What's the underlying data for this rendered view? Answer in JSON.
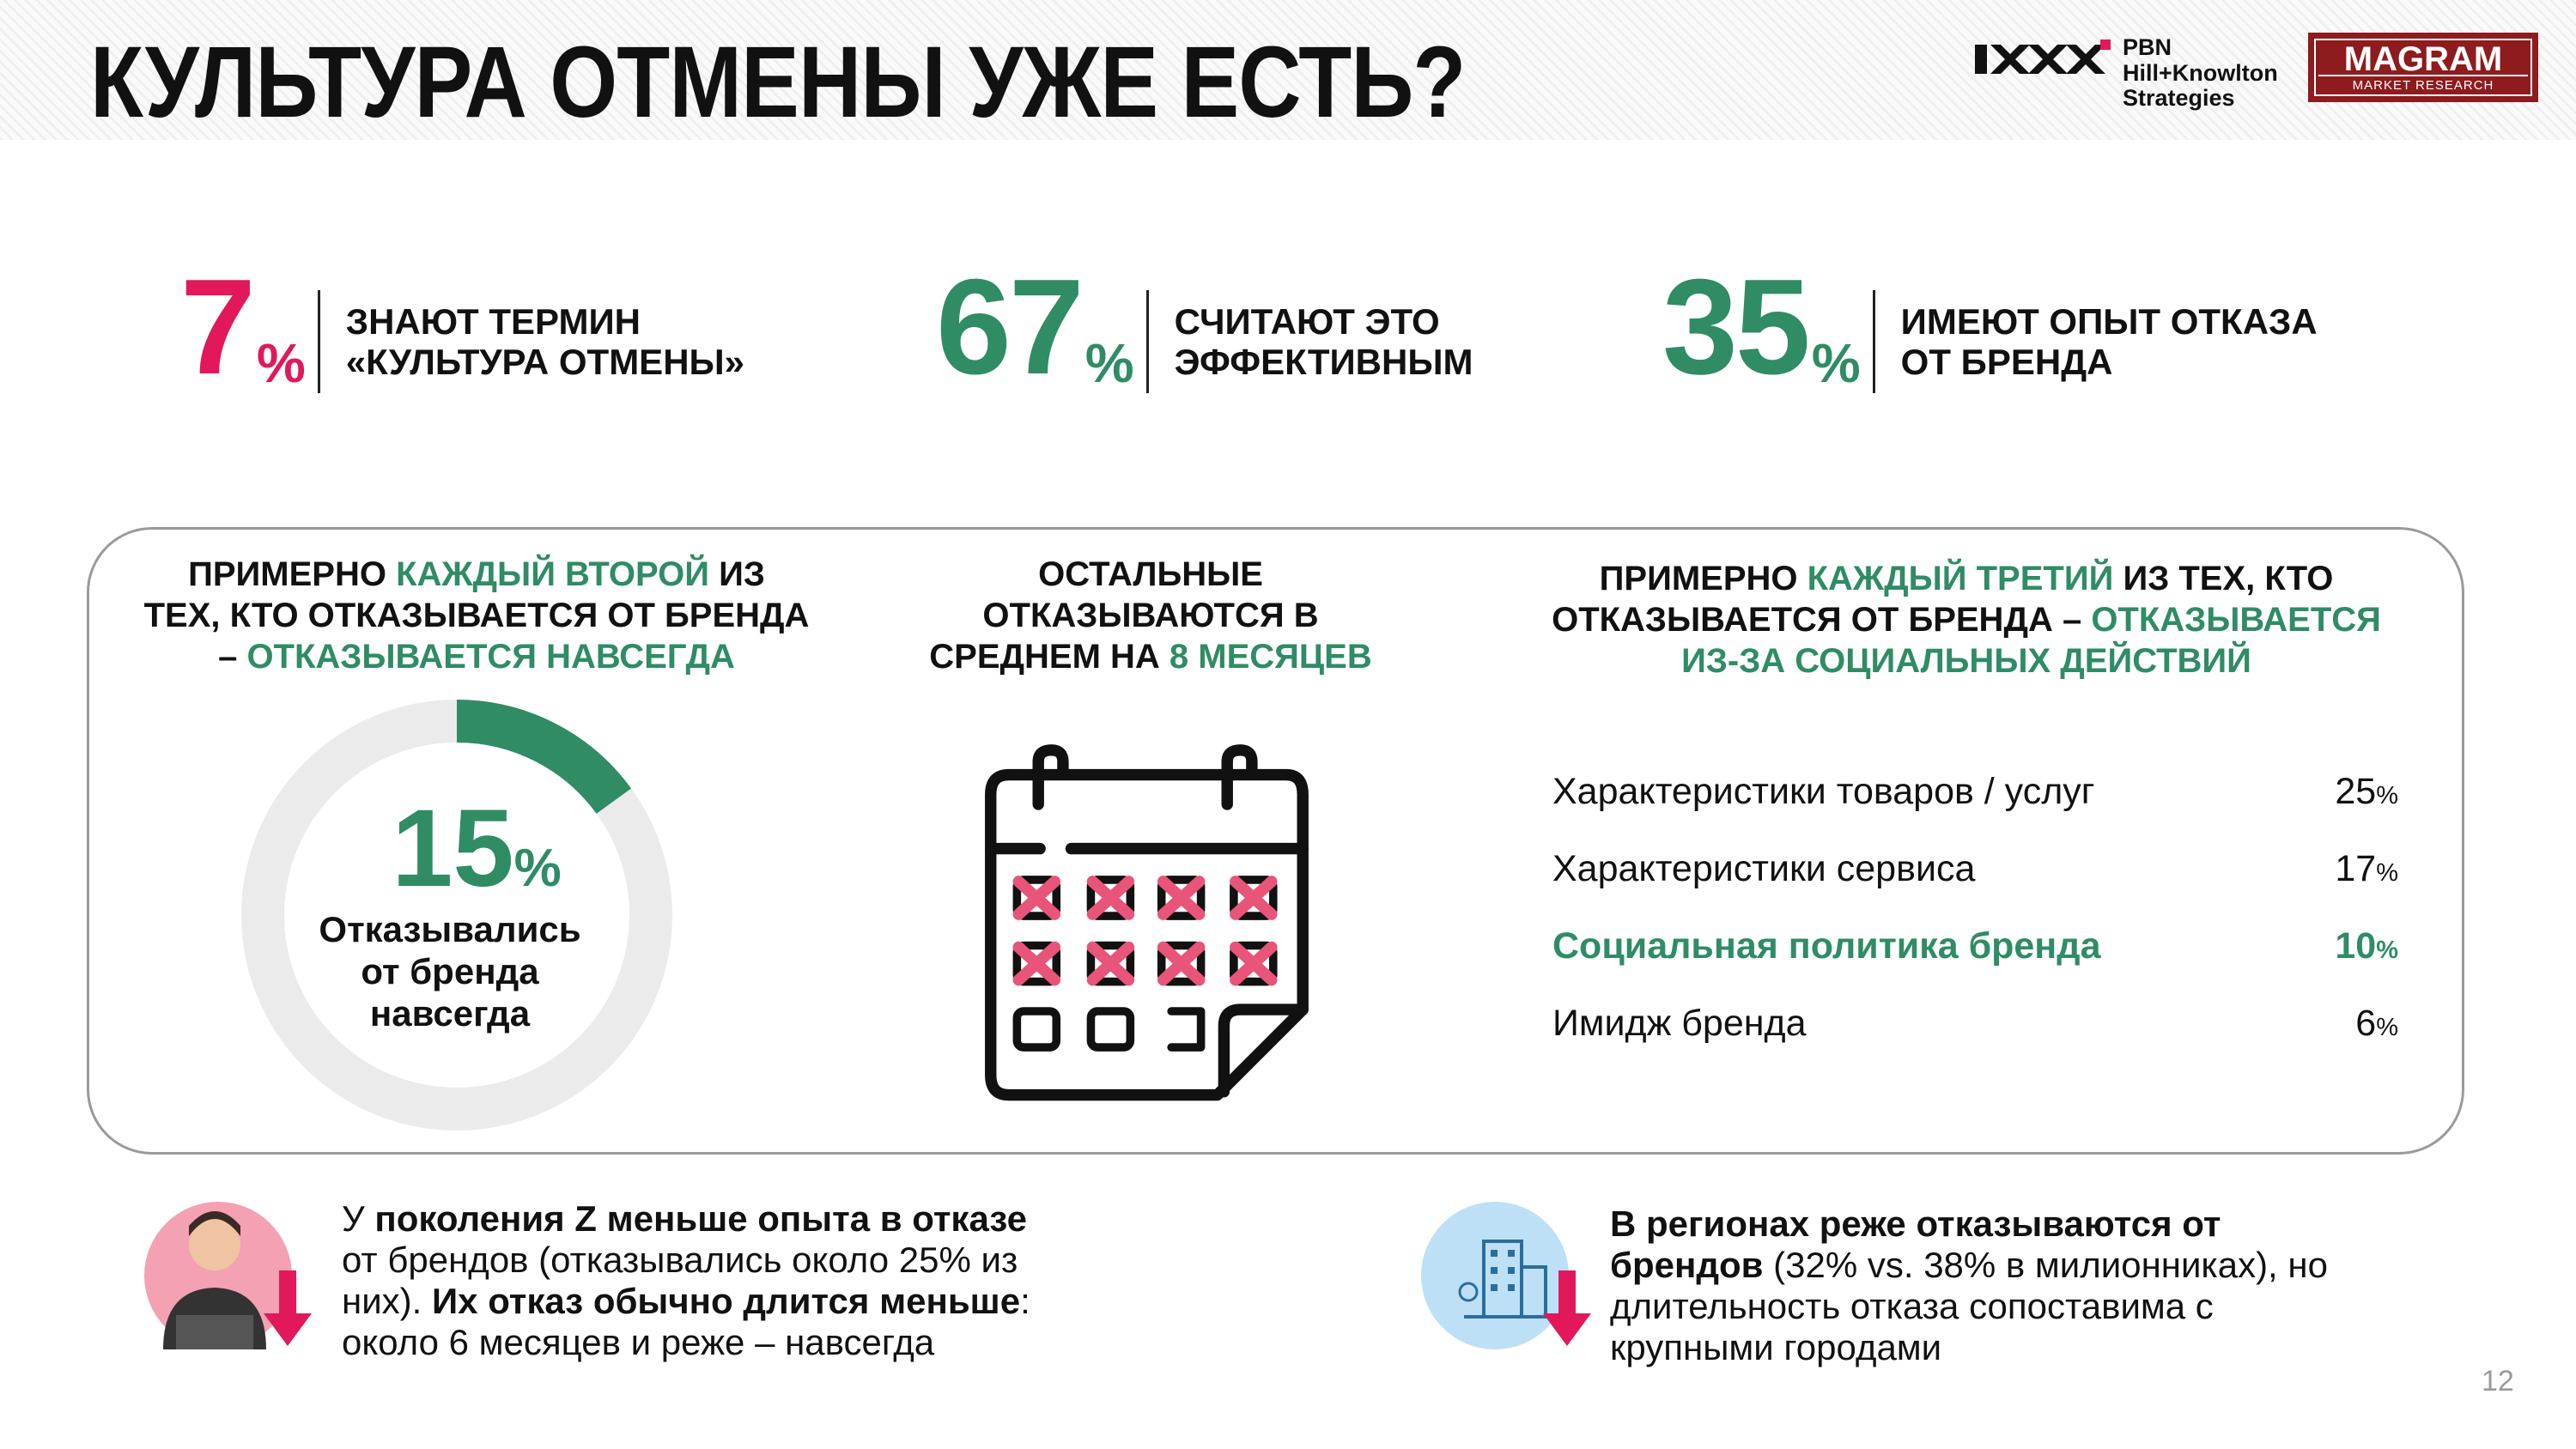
{
  "header": {
    "title": "КУЛЬТУРА ОТМЕНЫ УЖЕ ЕСТЬ?",
    "logo_pbn": [
      "PBN",
      "Hill+Knowlton",
      "Strategies"
    ],
    "logo_magram": {
      "name": "MAGRAM",
      "tagline": "MARKET RESEARCH"
    }
  },
  "stats": [
    {
      "value": "7",
      "unit": "%",
      "color": "#e2185a",
      "lines": [
        "ЗНАЮТ ТЕРМИН",
        "«КУЛЬТУРА ОТМЕНЫ»"
      ]
    },
    {
      "value": "67",
      "unit": "%",
      "color": "#2f8c64",
      "lines": [
        "СЧИТАЮТ ЭТО",
        "ЭФФЕКТИВНЫМ"
      ]
    },
    {
      "value": "35",
      "unit": "%",
      "color": "#2f8c64",
      "lines": [
        "ИМЕЮТ ОПЫТ ОТКАЗА",
        "ОТ БРЕНДА"
      ]
    }
  ],
  "panel": {
    "left": {
      "heading": [
        [
          {
            "text": "ПРИМЕРНО "
          },
          {
            "text": "КАЖДЫЙ ВТОРОЙ",
            "color": "#2f8c64"
          },
          {
            "text": " ИЗ"
          }
        ],
        [
          {
            "text": "ТЕХ, КТО ОТКАЗЫВАЕТСЯ ОТ БРЕНДА"
          }
        ],
        [
          {
            "text": "– "
          },
          {
            "text": "ОТКАЗЫВАЕТСЯ НАВСЕГДА",
            "color": "#2f8c64"
          }
        ]
      ],
      "donut": {
        "value": 15,
        "unit": "%",
        "color": "#2f8c64",
        "track_color": "#ebebeb",
        "caption": [
          "Отказывались",
          "от бренда",
          "навсегда"
        ]
      }
    },
    "middle": {
      "heading": [
        [
          {
            "text": "ОСТАЛЬНЫЕ"
          }
        ],
        [
          {
            "text": "ОТКАЗЫВАЮТСЯ В"
          }
        ],
        [
          {
            "text": "СРЕДНЕМ НА "
          },
          {
            "text": "8 МЕСЯЦЕВ",
            "color": "#2f8c64"
          }
        ]
      ]
    },
    "right": {
      "heading": [
        [
          {
            "text": "ПРИМЕРНО "
          },
          {
            "text": "КАЖДЫЙ ТРЕТИЙ",
            "color": "#2f8c64"
          },
          {
            "text": " ИЗ ТЕХ, КТО"
          }
        ],
        [
          {
            "text": "ОТКАЗЫВАЕТСЯ ОТ БРЕНДА – "
          },
          {
            "text": "ОТКАЗЫВАЕТСЯ",
            "color": "#2f8c64"
          }
        ],
        [
          {
            "text": "ИЗ-ЗА СОЦИАЛЬНЫХ ДЕЙСТВИЙ",
            "color": "#2f8c64"
          }
        ]
      ],
      "items": [
        {
          "label": "Характеристики товаров / услуг",
          "value": "25",
          "unit": "%"
        },
        {
          "label": "Характеристики сервиса",
          "value": "17",
          "unit": "%"
        },
        {
          "label": "Социальная политика бренда",
          "value": "10",
          "unit": "%",
          "color": "#2f8c64",
          "bold": true
        },
        {
          "label": "Имидж бренда",
          "value": "6",
          "unit": "%"
        }
      ]
    }
  },
  "notes": [
    {
      "lines": [
        [
          {
            "text": "У "
          },
          {
            "text": "поколения Z меньше опыта в отказе",
            "bold": true
          }
        ],
        [
          {
            "text": "от брендов (отказывались около 25% из"
          }
        ],
        [
          {
            "text": "них). "
          },
          {
            "text": "Их отказ обычно длится меньше",
            "bold": true
          },
          {
            "text": ":"
          }
        ],
        [
          {
            "text": "около 6 месяцев и реже – навсегда"
          }
        ]
      ]
    },
    {
      "lines": [
        [
          {
            "text": "В регионах реже отказываются от",
            "bold": true
          }
        ],
        [
          {
            "text": "брендов",
            "bold": true
          },
          {
            "text": " (32% vs. 38% в милионниках), но"
          }
        ],
        [
          {
            "text": "длительность отказа сопоставима с"
          }
        ],
        [
          {
            "text": "крупными городами"
          }
        ]
      ]
    }
  ],
  "page_number": "12"
}
